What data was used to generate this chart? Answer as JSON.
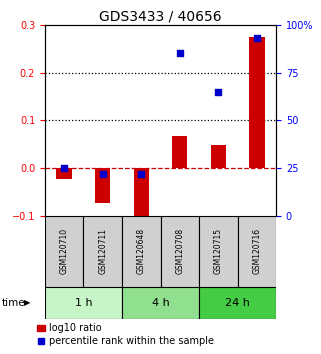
{
  "title": "GDS3433 / 40656",
  "samples": [
    "GSM120710",
    "GSM120711",
    "GSM120648",
    "GSM120708",
    "GSM120715",
    "GSM120716"
  ],
  "log10_ratio": [
    -0.022,
    -0.072,
    -0.108,
    0.068,
    0.048,
    0.275
  ],
  "percentile_rank": [
    25,
    22,
    22,
    85,
    65,
    93
  ],
  "left_ylim": [
    -0.1,
    0.3
  ],
  "right_ylim": [
    0,
    100
  ],
  "left_yticks": [
    -0.1,
    0.0,
    0.1,
    0.2,
    0.3
  ],
  "right_yticks": [
    0,
    25,
    50,
    75,
    100
  ],
  "right_yticklabels": [
    "0",
    "25",
    "50",
    "75",
    "100%"
  ],
  "dotted_lines": [
    0.1,
    0.2
  ],
  "dashed_zero": 0.0,
  "time_groups": [
    {
      "label": "1 h",
      "samples": [
        0,
        1
      ],
      "color": "#c8f5c8"
    },
    {
      "label": "4 h",
      "samples": [
        2,
        3
      ],
      "color": "#90e090"
    },
    {
      "label": "24 h",
      "samples": [
        4,
        5
      ],
      "color": "#44cc44"
    }
  ],
  "bar_color": "#cc0000",
  "square_color": "#0000cc",
  "bar_width": 0.4,
  "square_size": 25,
  "background_color": "#ffffff",
  "sample_box_color": "#d0d0d0",
  "title_fontsize": 10,
  "tick_fontsize": 7,
  "label_fontsize": 7.5,
  "legend_fontsize": 7,
  "sample_fontsize": 5.5,
  "time_fontsize": 8
}
